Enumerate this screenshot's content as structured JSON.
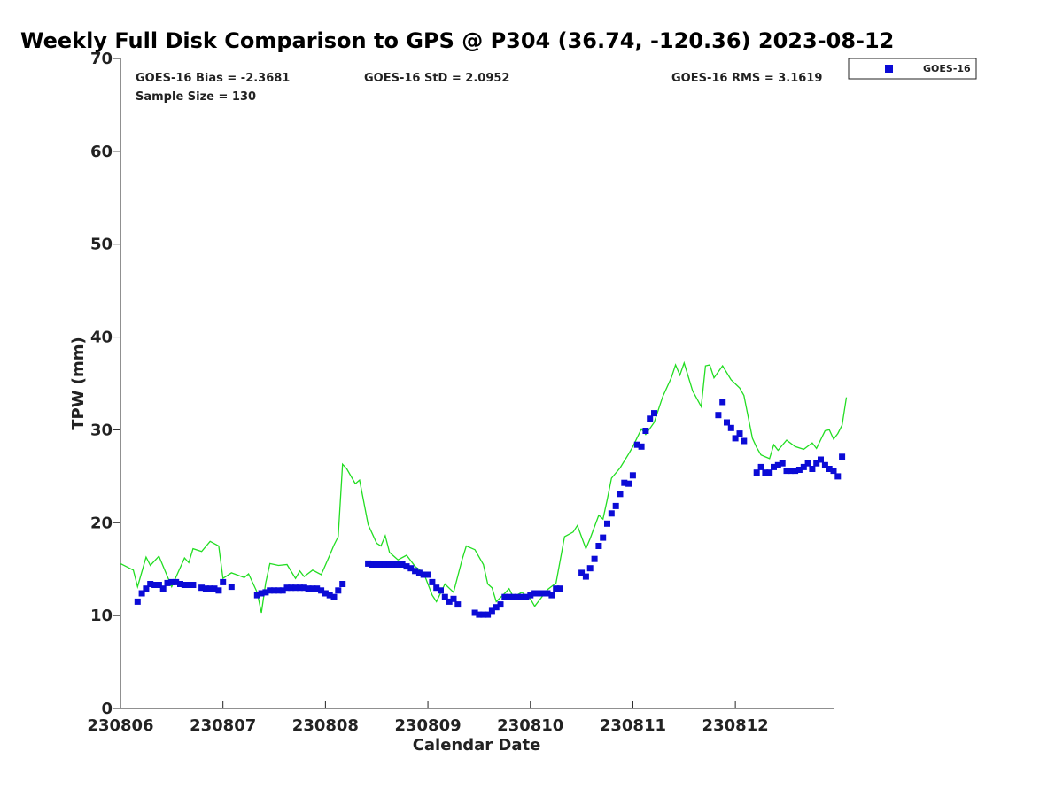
{
  "chart_data": {
    "type": "scatter",
    "title": "Weekly Full Disk Comparison to GPS @ P304 (36.74, -120.36) 2023-08-12",
    "xlabel": "Calendar Date",
    "ylabel": "TPW (mm)",
    "xlim": [
      "2023-08-06 00:00",
      "2023-08-12 23:00"
    ],
    "ylim": [
      0,
      70
    ],
    "yticks": [
      0,
      10,
      20,
      30,
      40,
      50,
      60,
      70
    ],
    "xticks": [
      {
        "date": "2023-08-06 00:00",
        "label": "230806"
      },
      {
        "date": "2023-08-07 00:00",
        "label": "230807"
      },
      {
        "date": "2023-08-08 00:00",
        "label": "230808"
      },
      {
        "date": "2023-08-09 00:00",
        "label": "230809"
      },
      {
        "date": "2023-08-10 00:00",
        "label": "230810"
      },
      {
        "date": "2023-08-11 00:00",
        "label": "230811"
      },
      {
        "date": "2023-08-12 00:00",
        "label": "230812"
      }
    ],
    "legend_position": "top-right",
    "stats": {
      "bias": "GOES-16 Bias = -2.3681",
      "std": "GOES-16 StD = 2.0952",
      "rms": "GOES-16 RMS = 3.1619",
      "sample": "Sample Size = 130"
    },
    "colors": {
      "goes": "#0b0bd6",
      "gps": "#22dd22"
    },
    "series": [
      {
        "name": "GOES-16",
        "marker": "square",
        "points": [
          [
            "2023-08-06 04:00",
            11.5
          ],
          [
            "2023-08-06 05:00",
            12.4
          ],
          [
            "2023-08-06 06:00",
            12.9
          ],
          [
            "2023-08-06 07:00",
            13.4
          ],
          [
            "2023-08-06 08:00",
            13.3
          ],
          [
            "2023-08-06 09:00",
            13.3
          ],
          [
            "2023-08-06 10:00",
            12.9
          ],
          [
            "2023-08-06 11:00",
            13.5
          ],
          [
            "2023-08-06 12:00",
            13.6
          ],
          [
            "2023-08-06 13:00",
            13.6
          ],
          [
            "2023-08-06 14:00",
            13.4
          ],
          [
            "2023-08-06 15:00",
            13.3
          ],
          [
            "2023-08-06 16:00",
            13.3
          ],
          [
            "2023-08-06 17:00",
            13.3
          ],
          [
            "2023-08-06 19:00",
            13.0
          ],
          [
            "2023-08-06 20:00",
            12.9
          ],
          [
            "2023-08-06 21:00",
            12.9
          ],
          [
            "2023-08-06 22:00",
            12.9
          ],
          [
            "2023-08-06 23:00",
            12.7
          ],
          [
            "2023-08-07 00:00",
            13.6
          ],
          [
            "2023-08-07 02:00",
            13.1
          ],
          [
            "2023-08-07 08:00",
            12.2
          ],
          [
            "2023-08-07 09:00",
            12.4
          ],
          [
            "2023-08-07 10:00",
            12.5
          ],
          [
            "2023-08-07 11:00",
            12.7
          ],
          [
            "2023-08-07 12:00",
            12.7
          ],
          [
            "2023-08-07 13:00",
            12.7
          ],
          [
            "2023-08-07 14:00",
            12.7
          ],
          [
            "2023-08-07 15:00",
            13.0
          ],
          [
            "2023-08-07 16:00",
            13.0
          ],
          [
            "2023-08-07 17:00",
            13.0
          ],
          [
            "2023-08-07 18:00",
            13.0
          ],
          [
            "2023-08-07 19:00",
            13.0
          ],
          [
            "2023-08-07 20:00",
            12.9
          ],
          [
            "2023-08-07 21:00",
            12.9
          ],
          [
            "2023-08-07 22:00",
            12.9
          ],
          [
            "2023-08-07 23:00",
            12.7
          ],
          [
            "2023-08-08 00:00",
            12.4
          ],
          [
            "2023-08-08 01:00",
            12.2
          ],
          [
            "2023-08-08 02:00",
            12.0
          ],
          [
            "2023-08-08 03:00",
            12.7
          ],
          [
            "2023-08-08 04:00",
            13.4
          ],
          [
            "2023-08-08 10:00",
            15.6
          ],
          [
            "2023-08-08 11:00",
            15.5
          ],
          [
            "2023-08-08 12:00",
            15.5
          ],
          [
            "2023-08-08 13:00",
            15.5
          ],
          [
            "2023-08-08 14:00",
            15.5
          ],
          [
            "2023-08-08 15:00",
            15.5
          ],
          [
            "2023-08-08 16:00",
            15.5
          ],
          [
            "2023-08-08 17:00",
            15.5
          ],
          [
            "2023-08-08 18:00",
            15.5
          ],
          [
            "2023-08-08 19:00",
            15.3
          ],
          [
            "2023-08-08 20:00",
            15.1
          ],
          [
            "2023-08-08 21:00",
            14.8
          ],
          [
            "2023-08-08 22:00",
            14.6
          ],
          [
            "2023-08-08 23:00",
            14.4
          ],
          [
            "2023-08-09 00:00",
            14.4
          ],
          [
            "2023-08-09 01:00",
            13.6
          ],
          [
            "2023-08-09 02:00",
            13.0
          ],
          [
            "2023-08-09 03:00",
            12.7
          ],
          [
            "2023-08-09 04:00",
            12.0
          ],
          [
            "2023-08-09 05:00",
            11.5
          ],
          [
            "2023-08-09 06:00",
            11.8
          ],
          [
            "2023-08-09 07:00",
            11.2
          ],
          [
            "2023-08-09 11:00",
            10.3
          ],
          [
            "2023-08-09 12:00",
            10.1
          ],
          [
            "2023-08-09 13:00",
            10.1
          ],
          [
            "2023-08-09 14:00",
            10.1
          ],
          [
            "2023-08-09 15:00",
            10.5
          ],
          [
            "2023-08-09 16:00",
            10.9
          ],
          [
            "2023-08-09 17:00",
            11.2
          ],
          [
            "2023-08-09 18:00",
            12.0
          ],
          [
            "2023-08-09 19:00",
            12.0
          ],
          [
            "2023-08-09 20:00",
            12.0
          ],
          [
            "2023-08-09 21:00",
            12.0
          ],
          [
            "2023-08-09 22:00",
            12.0
          ],
          [
            "2023-08-09 23:00",
            12.0
          ],
          [
            "2023-08-10 00:00",
            12.2
          ],
          [
            "2023-08-10 01:00",
            12.4
          ],
          [
            "2023-08-10 02:00",
            12.4
          ],
          [
            "2023-08-10 03:00",
            12.4
          ],
          [
            "2023-08-10 04:00",
            12.4
          ],
          [
            "2023-08-10 05:00",
            12.2
          ],
          [
            "2023-08-10 06:00",
            12.9
          ],
          [
            "2023-08-10 07:00",
            12.9
          ],
          [
            "2023-08-10 12:00",
            14.6
          ],
          [
            "2023-08-10 13:00",
            14.2
          ],
          [
            "2023-08-10 14:00",
            15.1
          ],
          [
            "2023-08-10 15:00",
            16.1
          ],
          [
            "2023-08-10 16:00",
            17.5
          ],
          [
            "2023-08-10 17:00",
            18.4
          ],
          [
            "2023-08-10 18:00",
            19.9
          ],
          [
            "2023-08-10 19:00",
            21.0
          ],
          [
            "2023-08-10 20:00",
            21.8
          ],
          [
            "2023-08-10 21:00",
            23.1
          ],
          [
            "2023-08-10 22:00",
            24.3
          ],
          [
            "2023-08-10 23:00",
            24.2
          ],
          [
            "2023-08-11 00:00",
            25.1
          ],
          [
            "2023-08-11 01:00",
            28.4
          ],
          [
            "2023-08-11 02:00",
            28.2
          ],
          [
            "2023-08-11 03:00",
            29.9
          ],
          [
            "2023-08-11 04:00",
            31.2
          ],
          [
            "2023-08-11 05:00",
            31.8
          ],
          [
            "2023-08-11 20:00",
            31.6
          ],
          [
            "2023-08-11 21:00",
            33.0
          ],
          [
            "2023-08-11 22:00",
            30.8
          ],
          [
            "2023-08-11 23:00",
            30.2
          ],
          [
            "2023-08-12 00:00",
            29.1
          ],
          [
            "2023-08-12 01:00",
            29.6
          ],
          [
            "2023-08-12 02:00",
            28.8
          ],
          [
            "2023-08-12 05:00",
            25.4
          ],
          [
            "2023-08-12 06:00",
            26.0
          ],
          [
            "2023-08-12 07:00",
            25.4
          ],
          [
            "2023-08-12 08:00",
            25.4
          ],
          [
            "2023-08-12 09:00",
            26.0
          ],
          [
            "2023-08-12 10:00",
            26.2
          ],
          [
            "2023-08-12 11:00",
            26.4
          ],
          [
            "2023-08-12 12:00",
            25.6
          ],
          [
            "2023-08-12 13:00",
            25.6
          ],
          [
            "2023-08-12 14:00",
            25.6
          ],
          [
            "2023-08-12 15:00",
            25.7
          ],
          [
            "2023-08-12 16:00",
            26.0
          ],
          [
            "2023-08-12 17:00",
            26.4
          ],
          [
            "2023-08-12 18:00",
            25.8
          ],
          [
            "2023-08-12 19:00",
            26.4
          ],
          [
            "2023-08-12 20:00",
            26.8
          ],
          [
            "2023-08-12 21:00",
            26.2
          ],
          [
            "2023-08-12 22:00",
            25.8
          ],
          [
            "2023-08-12 23:00",
            25.6
          ],
          [
            "2023-08-13 00:00",
            25.0
          ],
          [
            "2023-08-13 01:00",
            27.1
          ]
        ]
      },
      {
        "marker": "line",
        "points": [
          [
            "2023-08-06 00:00",
            15.6
          ],
          [
            "2023-08-06 03:00",
            14.9
          ],
          [
            "2023-08-06 04:00",
            13.1
          ],
          [
            "2023-08-06 06:00",
            16.3
          ],
          [
            "2023-08-06 07:00",
            15.4
          ],
          [
            "2023-08-06 09:00",
            16.4
          ],
          [
            "2023-08-06 12:00",
            13.1
          ],
          [
            "2023-08-06 15:00",
            16.2
          ],
          [
            "2023-08-06 16:00",
            15.7
          ],
          [
            "2023-08-06 17:00",
            17.2
          ],
          [
            "2023-08-06 19:00",
            16.9
          ],
          [
            "2023-08-06 21:00",
            18.0
          ],
          [
            "2023-08-06 23:00",
            17.5
          ],
          [
            "2023-08-07 00:00",
            14.0
          ],
          [
            "2023-08-07 02:00",
            14.6
          ],
          [
            "2023-08-07 05:00",
            14.1
          ],
          [
            "2023-08-07 06:00",
            14.5
          ],
          [
            "2023-08-07 08:00",
            12.5
          ],
          [
            "2023-08-07 09:00",
            10.3
          ],
          [
            "2023-08-07 10:00",
            13.5
          ],
          [
            "2023-08-07 11:00",
            15.6
          ],
          [
            "2023-08-07 13:00",
            15.4
          ],
          [
            "2023-08-07 15:00",
            15.5
          ],
          [
            "2023-08-07 17:00",
            14.0
          ],
          [
            "2023-08-07 18:00",
            14.8
          ],
          [
            "2023-08-07 19:00",
            14.2
          ],
          [
            "2023-08-07 21:00",
            14.9
          ],
          [
            "2023-08-07 23:00",
            14.4
          ],
          [
            "2023-08-08 01:00",
            16.5
          ],
          [
            "2023-08-08 02:00",
            17.6
          ],
          [
            "2023-08-08 03:00",
            18.5
          ],
          [
            "2023-08-08 04:00",
            26.3
          ],
          [
            "2023-08-08 05:00",
            25.8
          ],
          [
            "2023-08-08 07:00",
            24.2
          ],
          [
            "2023-08-08 08:00",
            24.6
          ],
          [
            "2023-08-08 10:00",
            19.8
          ],
          [
            "2023-08-08 12:00",
            17.8
          ],
          [
            "2023-08-08 13:00",
            17.5
          ],
          [
            "2023-08-08 14:00",
            18.6
          ],
          [
            "2023-08-08 15:00",
            16.8
          ],
          [
            "2023-08-08 17:00",
            16.0
          ],
          [
            "2023-08-08 19:00",
            16.5
          ],
          [
            "2023-08-08 21:00",
            15.3
          ],
          [
            "2023-08-08 23:00",
            14.6
          ],
          [
            "2023-08-09 01:00",
            12.2
          ],
          [
            "2023-08-09 02:00",
            11.5
          ],
          [
            "2023-08-09 04:00",
            13.4
          ],
          [
            "2023-08-09 06:00",
            12.5
          ],
          [
            "2023-08-09 08:00",
            16.0
          ],
          [
            "2023-08-09 09:00",
            17.5
          ],
          [
            "2023-08-09 11:00",
            17.1
          ],
          [
            "2023-08-09 13:00",
            15.5
          ],
          [
            "2023-08-09 14:00",
            13.4
          ],
          [
            "2023-08-09 15:00",
            13.0
          ],
          [
            "2023-08-09 16:00",
            11.5
          ],
          [
            "2023-08-09 18:00",
            12.4
          ],
          [
            "2023-08-09 19:00",
            12.9
          ],
          [
            "2023-08-09 20:00",
            12.0
          ],
          [
            "2023-08-09 22:00",
            12.5
          ],
          [
            "2023-08-10 00:00",
            11.8
          ],
          [
            "2023-08-10 01:00",
            11.0
          ],
          [
            "2023-08-10 02:00",
            11.6
          ],
          [
            "2023-08-10 04:00",
            12.8
          ],
          [
            "2023-08-10 06:00",
            13.5
          ],
          [
            "2023-08-10 08:00",
            18.5
          ],
          [
            "2023-08-10 10:00",
            19.0
          ],
          [
            "2023-08-10 11:00",
            19.7
          ],
          [
            "2023-08-10 13:00",
            17.2
          ],
          [
            "2023-08-10 14:00",
            18.3
          ],
          [
            "2023-08-10 16:00",
            20.8
          ],
          [
            "2023-08-10 17:00",
            20.4
          ],
          [
            "2023-08-10 18:00",
            22.5
          ],
          [
            "2023-08-10 19:00",
            24.8
          ],
          [
            "2023-08-10 21:00",
            25.9
          ],
          [
            "2023-08-10 23:00",
            27.4
          ],
          [
            "2023-08-11 00:00",
            28.2
          ],
          [
            "2023-08-11 02:00",
            30.1
          ],
          [
            "2023-08-11 03:00",
            29.5
          ],
          [
            "2023-08-11 05:00",
            30.8
          ],
          [
            "2023-08-11 07:00",
            33.6
          ],
          [
            "2023-08-11 09:00",
            35.6
          ],
          [
            "2023-08-11 10:00",
            37.0
          ],
          [
            "2023-08-11 11:00",
            35.9
          ],
          [
            "2023-08-11 12:00",
            37.2
          ],
          [
            "2023-08-11 14:00",
            34.2
          ],
          [
            "2023-08-11 16:00",
            32.5
          ],
          [
            "2023-08-11 17:00",
            36.9
          ],
          [
            "2023-08-11 18:00",
            37.0
          ],
          [
            "2023-08-11 19:00",
            35.6
          ],
          [
            "2023-08-11 21:00",
            36.9
          ],
          [
            "2023-08-11 23:00",
            35.4
          ],
          [
            "2023-08-12 01:00",
            34.5
          ],
          [
            "2023-08-12 02:00",
            33.7
          ],
          [
            "2023-08-12 03:00",
            31.4
          ],
          [
            "2023-08-12 04:00",
            29.1
          ],
          [
            "2023-08-12 05:00",
            28.1
          ],
          [
            "2023-08-12 06:00",
            27.3
          ],
          [
            "2023-08-12 08:00",
            26.9
          ],
          [
            "2023-08-12 09:00",
            28.4
          ],
          [
            "2023-08-12 10:00",
            27.8
          ],
          [
            "2023-08-12 12:00",
            28.9
          ],
          [
            "2023-08-12 14:00",
            28.2
          ],
          [
            "2023-08-12 16:00",
            27.9
          ],
          [
            "2023-08-12 18:00",
            28.6
          ],
          [
            "2023-08-12 19:00",
            28.0
          ],
          [
            "2023-08-12 21:00",
            29.9
          ],
          [
            "2023-08-12 22:00",
            30.0
          ],
          [
            "2023-08-12 23:00",
            29.0
          ],
          [
            "2023-08-13 00:00",
            29.6
          ],
          [
            "2023-08-13 01:00",
            30.5
          ],
          [
            "2023-08-13 02:00",
            33.5
          ]
        ]
      }
    ]
  }
}
